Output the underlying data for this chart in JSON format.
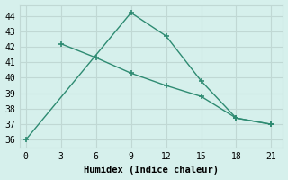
{
  "line1_x": [
    0,
    9,
    12,
    15,
    18,
    21
  ],
  "line1_y": [
    36,
    44.2,
    42.7,
    39.8,
    37.4,
    37
  ],
  "line2_x": [
    3,
    6,
    9,
    12,
    15,
    18,
    21
  ],
  "line2_y": [
    42.2,
    41.3,
    40.3,
    39.5,
    38.8,
    37.4,
    37
  ],
  "color": "#2E8B72",
  "bg_color": "#D6F0EC",
  "grid_color": "#C0D8D4",
  "xlabel": "Humidex (Indice chaleur)",
  "ylim": [
    35.5,
    44.7
  ],
  "xlim": [
    -0.5,
    22
  ],
  "yticks": [
    36,
    37,
    38,
    39,
    40,
    41,
    42,
    43,
    44
  ],
  "xticks": [
    0,
    3,
    6,
    9,
    12,
    15,
    18,
    21
  ],
  "marker": "+"
}
